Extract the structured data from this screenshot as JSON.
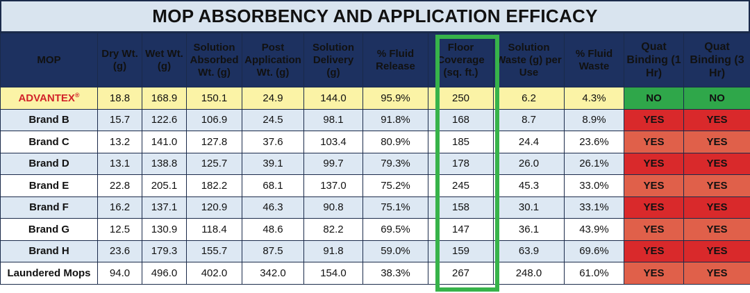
{
  "title": "MOP ABSORBENCY AND APPLICATION EFFICACY",
  "highlight_color": "#37b34a",
  "columns": [
    "MOP",
    "Dry Wt. (g)",
    "Wet Wt. (g)",
    "Solution Absorbed Wt. (g)",
    "Post Application Wt. (g)",
    "Solution Delivery (g)",
    "% Fluid Release",
    "Floor Coverage (sq. ft.)",
    "Solution Waste (g) per Use",
    "% Fluid Waste",
    "Quat Binding (1 Hr)",
    "Quat Binding (3 Hr)"
  ],
  "rows": [
    {
      "mop": "ADVANTEX",
      "mark": "®",
      "dry": "18.8",
      "wet": "168.9",
      "absorbed": "150.1",
      "post": "24.9",
      "delivery": "144.0",
      "release": "95.9%",
      "coverage": "250",
      "waste": "6.2",
      "fluid_waste": "4.3%",
      "quat1": "NO",
      "quat3": "NO"
    },
    {
      "mop": "Brand B",
      "dry": "15.7",
      "wet": "122.6",
      "absorbed": "106.9",
      "post": "24.5",
      "delivery": "98.1",
      "release": "91.8%",
      "coverage": "168",
      "waste": "8.7",
      "fluid_waste": "8.9%",
      "quat1": "YES",
      "quat3": "YES"
    },
    {
      "mop": "Brand C",
      "dry": "13.2",
      "wet": "141.0",
      "absorbed": "127.8",
      "post": "37.6",
      "delivery": "103.4",
      "release": "80.9%",
      "coverage": "185",
      "waste": "24.4",
      "fluid_waste": "23.6%",
      "quat1": "YES",
      "quat3": "YES"
    },
    {
      "mop": "Brand D",
      "dry": "13.1",
      "wet": "138.8",
      "absorbed": "125.7",
      "post": "39.1",
      "delivery": "99.7",
      "release": "79.3%",
      "coverage": "178",
      "waste": "26.0",
      "fluid_waste": "26.1%",
      "quat1": "YES",
      "quat3": "YES"
    },
    {
      "mop": "Brand E",
      "dry": "22.8",
      "wet": "205.1",
      "absorbed": "182.2",
      "post": "68.1",
      "delivery": "137.0",
      "release": "75.2%",
      "coverage": "245",
      "waste": "45.3",
      "fluid_waste": "33.0%",
      "quat1": "YES",
      "quat3": "YES"
    },
    {
      "mop": "Brand F",
      "dry": "16.2",
      "wet": "137.1",
      "absorbed": "120.9",
      "post": "46.3",
      "delivery": "90.8",
      "release": "75.1%",
      "coverage": "158",
      "waste": "30.1",
      "fluid_waste": "33.1%",
      "quat1": "YES",
      "quat3": "YES"
    },
    {
      "mop": "Brand G",
      "dry": "12.5",
      "wet": "130.9",
      "absorbed": "118.4",
      "post": "48.6",
      "delivery": "82.2",
      "release": "69.5%",
      "coverage": "147",
      "waste": "36.1",
      "fluid_waste": "43.9%",
      "quat1": "YES",
      "quat3": "YES"
    },
    {
      "mop": "Brand H",
      "dry": "23.6",
      "wet": "179.3",
      "absorbed": "155.7",
      "post": "87.5",
      "delivery": "91.8",
      "release": "59.0%",
      "coverage": "159",
      "waste": "63.9",
      "fluid_waste": "69.6%",
      "quat1": "YES",
      "quat3": "YES"
    },
    {
      "mop": "Laundered Mops",
      "dry": "94.0",
      "wet": "496.0",
      "absorbed": "402.0",
      "post": "342.0",
      "delivery": "154.0",
      "release": "38.3%",
      "coverage": "267",
      "waste": "248.0",
      "fluid_waste": "61.0%",
      "quat1": "YES",
      "quat3": "YES"
    }
  ]
}
